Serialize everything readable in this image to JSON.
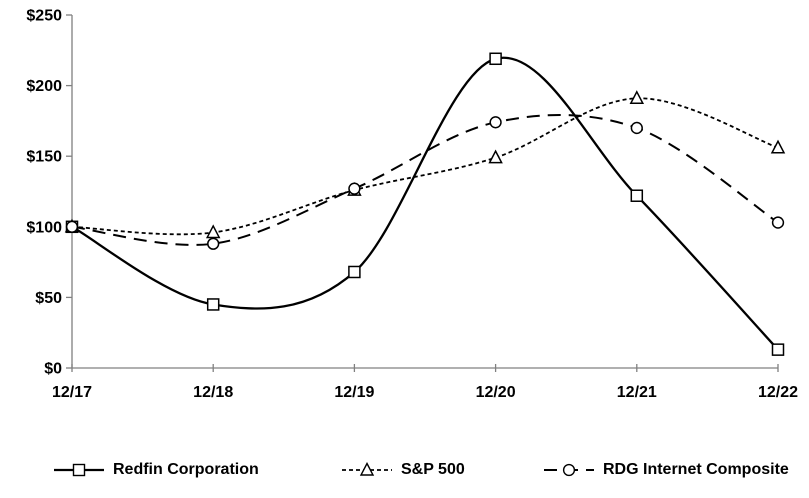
{
  "chart_data": {
    "type": "line",
    "title": "",
    "categories": [
      "12/17",
      "12/18",
      "12/19",
      "12/20",
      "12/21",
      "12/22"
    ],
    "series": [
      {
        "name": "Redfin Corporation",
        "marker": "square",
        "line_style": "solid",
        "values": [
          100,
          45,
          68,
          219,
          122,
          13
        ]
      },
      {
        "name": "S&P 500",
        "marker": "triangle",
        "line_style": "short-dash",
        "values": [
          100,
          96,
          126,
          149,
          191,
          156
        ]
      },
      {
        "name": "RDG Internet Composite",
        "marker": "circle",
        "line_style": "long-dash",
        "values": [
          100,
          88,
          127,
          174,
          170,
          103
        ]
      }
    ],
    "xlabel": "",
    "ylabel": "",
    "ylim": [
      0,
      250
    ],
    "y_ticks": [
      0,
      50,
      100,
      150,
      200,
      250
    ],
    "y_tick_labels": [
      "$0",
      "$50",
      "$100",
      "$150",
      "$200",
      "$250"
    ],
    "grid": false,
    "legend_position": "bottom",
    "colors": {
      "line": "#000000",
      "axis": "#808080",
      "text": "#000000",
      "background": "#ffffff"
    }
  }
}
